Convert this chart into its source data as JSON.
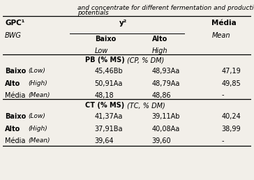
{
  "title_line1": "and concentrate for different fermentation and production",
  "title_line2": "potentials",
  "col_header_left": "GPC¹",
  "col_header_left_italic": "BWG",
  "col_header_mid": "y²",
  "col_header_right": "Média",
  "col_header_right_italic": "Mean",
  "subheader_col1": "Baixo",
  "subheader_col1_italic": "Low",
  "subheader_col2": "Alto",
  "subheader_col2_italic": "High",
  "section1_header_bold": "PB (% MS) ",
  "section1_header_italic": "(CP, % DM)",
  "section2_header_bold": "CT (% MS) ",
  "section2_header_italic": "(TC, % DM)",
  "rows": [
    {
      "section": "PB",
      "label": "Baixo",
      "label_italic": "(Low)",
      "col1": "45,46Bb",
      "col2": "48,93Aa",
      "media": "47,19"
    },
    {
      "section": "PB",
      "label": "Alto",
      "label_italic": "(High)",
      "col1": "50,91Aa",
      "col2": "48,79Aa",
      "media": "49,85"
    },
    {
      "section": "PB",
      "label": "Média",
      "label_italic": "(Mean)",
      "col1": "48,18",
      "col2": "48,86",
      "media": "-"
    },
    {
      "section": "CT",
      "label": "Baixo",
      "label_italic": "(Low)",
      "col1": "41,37Aa",
      "col2": "39,11Ab",
      "media": "40,24"
    },
    {
      "section": "CT",
      "label": "Alto",
      "label_italic": "(High)",
      "col1": "37,91Ba",
      "col2": "40,08Aa",
      "media": "38,99"
    },
    {
      "section": "CT",
      "label": "Média",
      "label_italic": "(Mean)",
      "col1": "39,64",
      "col2": "39,60",
      "media": "-"
    }
  ],
  "bg_color": "#f2efe9",
  "font_size": 7.0,
  "title_font_size": 6.5
}
